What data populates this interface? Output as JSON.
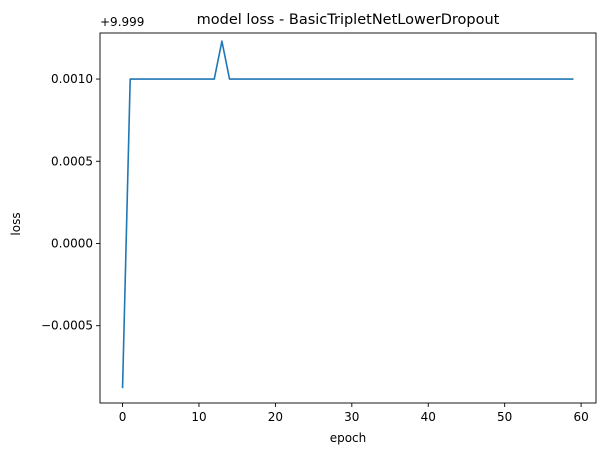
{
  "chart_data": {
    "type": "line",
    "title": "model loss - BasicTripletNetLowerDropout",
    "xlabel": "epoch",
    "ylabel": "loss",
    "y_offset_label": "+9.999",
    "xlim": [
      -2.95,
      61.95
    ],
    "ylim": [
      -0.00097,
      0.00128
    ],
    "x_ticks": [
      0,
      10,
      20,
      30,
      40,
      50,
      60
    ],
    "x_tick_labels": [
      "0",
      "10",
      "20",
      "30",
      "40",
      "50",
      "60"
    ],
    "y_ticks": [
      -0.0005,
      0.0,
      0.0005,
      0.001
    ],
    "y_tick_labels": [
      "−0.0005",
      "0.0000",
      "0.0005",
      "0.0010"
    ],
    "grid": false,
    "series": [
      {
        "color": "#1f77b4",
        "x": [
          0,
          1,
          2,
          3,
          4,
          5,
          6,
          7,
          8,
          9,
          10,
          11,
          12,
          13,
          14,
          15,
          16,
          17,
          18,
          19,
          20,
          21,
          22,
          23,
          24,
          25,
          26,
          27,
          28,
          29,
          30,
          31,
          32,
          33,
          34,
          35,
          36,
          37,
          38,
          39,
          40,
          41,
          42,
          43,
          44,
          45,
          46,
          47,
          48,
          49,
          50,
          51,
          52,
          53,
          54,
          55,
          56,
          57,
          58,
          59
        ],
        "values": [
          -0.00088,
          0.001,
          0.001,
          0.001,
          0.001,
          0.001,
          0.001,
          0.001,
          0.001,
          0.001,
          0.001,
          0.001,
          0.001,
          0.00123,
          0.001,
          0.001,
          0.001,
          0.001,
          0.001,
          0.001,
          0.001,
          0.001,
          0.001,
          0.001,
          0.001,
          0.001,
          0.001,
          0.001,
          0.001,
          0.001,
          0.001,
          0.001,
          0.001,
          0.001,
          0.001,
          0.001,
          0.001,
          0.001,
          0.001,
          0.001,
          0.001,
          0.001,
          0.001,
          0.001,
          0.001,
          0.001,
          0.001,
          0.001,
          0.001,
          0.001,
          0.001,
          0.001,
          0.001,
          0.001,
          0.001,
          0.001,
          0.001,
          0.001,
          0.001,
          0.001
        ]
      }
    ]
  }
}
